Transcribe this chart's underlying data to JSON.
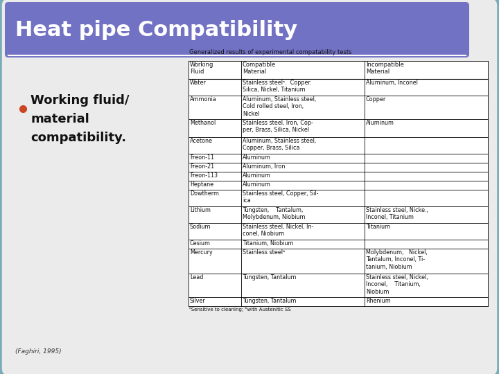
{
  "title": "Heat pipe Compatibility",
  "title_bg_color": "#7272C4",
  "title_text_color": "#FFFFFF",
  "slide_bg_color": "#FFFFFF",
  "content_bg_color": "#EBEBEB",
  "border_color": "#7AABB8",
  "bullet_text": [
    "Working fluid/",
    "material",
    "compatibility."
  ],
  "bullet_color": "#CC4422",
  "table_title": "Generalized results of experimental compatability tests",
  "table_headers": [
    "Working\nFluid",
    "Compatible\nMaterial",
    "Incompatible\nMaterial"
  ],
  "table_data": [
    [
      "Water",
      "Stainless steelᵃ.  Copper.\nSilica, Nickel, Titanium",
      "Aluminum, Inconel"
    ],
    [
      "Ammonia",
      "Aluminum, Stainless steel,\nCold rolled steel, Iron,\nNickel",
      "Copper"
    ],
    [
      "Methanol",
      "Stainless steel, Iron, Cop-\nper, Brass, Silica, Nickel",
      "Aluminum"
    ],
    [
      "Acetone",
      "Aluminum, Stainless steel,\nCopper, Brass, Silica",
      ""
    ],
    [
      "Freon-11",
      "Aluminum",
      ""
    ],
    [
      "Freon-21",
      "Aluminum, Iron",
      ""
    ],
    [
      "Freon-113",
      "Aluminum",
      ""
    ],
    [
      "Heptane",
      "Aluminum",
      ""
    ],
    [
      "Dowtherm",
      "Stainless steel, Copper, Sil-\nica",
      ""
    ],
    [
      "Lithium",
      "Tungsten,    Tantalum,\nMolybdenum, Niobium",
      "Stainless steel, Nicke.,\nInconel, Titanium"
    ],
    [
      "Sodium",
      "Stainless steel, Nickel, In-\nconel, Niobium",
      "Titanium"
    ],
    [
      "Cesium",
      "Titanium, Niobium",
      ""
    ],
    [
      "Mercury",
      "Stainless steelᵇ",
      "Molybdenum,   Nickel,\nTantalum, Inconel, Ti-\ntanium, Niobium"
    ],
    [
      "Lead",
      "Tungsten, Tantalum",
      "Stainless steel, Nickel,\nInconel,    Titanium,\nNiobium"
    ],
    [
      "Silver",
      "Tungsten, Tantalum",
      "Rhenium"
    ]
  ],
  "footnote": "ᵃSensitive to cleaning; ᵇwith Austenitic SS",
  "citation": "(Faghiri, 1995)"
}
